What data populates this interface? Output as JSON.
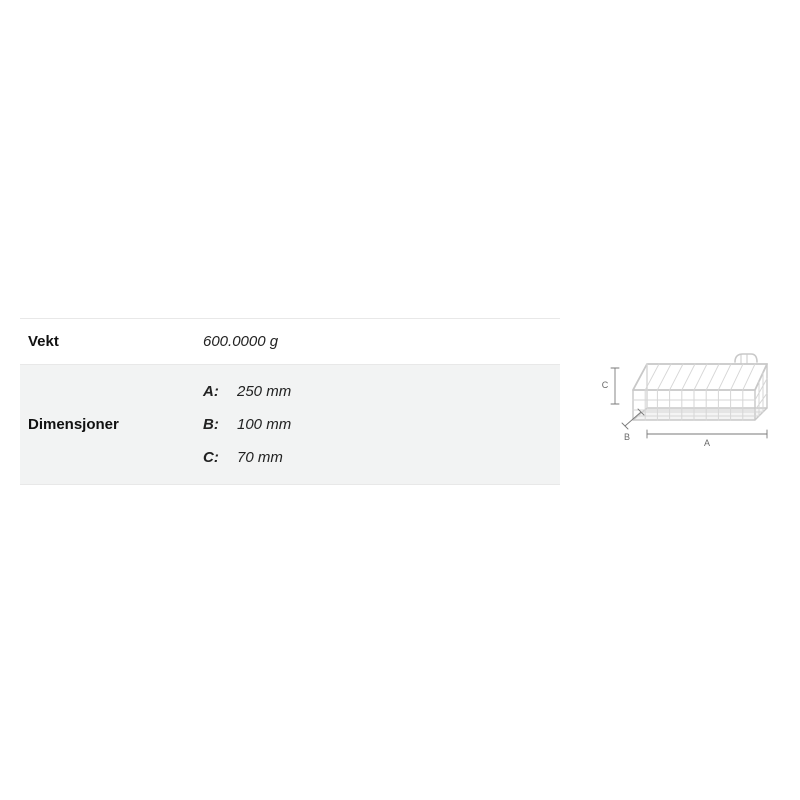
{
  "table": {
    "weight": {
      "label": "Vekt",
      "value": "600.0000 g"
    },
    "dimensions": {
      "label": "Dimensjoner",
      "items": [
        {
          "key": "A:",
          "value": "250 mm"
        },
        {
          "key": "B:",
          "value": "100 mm"
        },
        {
          "key": "C:",
          "value": "70 mm"
        }
      ]
    }
  },
  "diagram": {
    "labels": {
      "a": "A",
      "b": "B",
      "c": "C"
    },
    "colors": {
      "wire": "#c8c8c8",
      "wire_light": "#d6d6d6",
      "dim_line": "#7a7a7a",
      "dim_text": "#6a6a6a"
    },
    "stroke_width": 1.4,
    "font_size": 9
  },
  "layout": {
    "background": "#ffffff",
    "row_alt_bg": "#f2f3f3",
    "border_color": "#e8e8e8",
    "label_fontsize": 15,
    "label_weight": 700,
    "value_fontsize": 15,
    "value_style": "italic"
  }
}
